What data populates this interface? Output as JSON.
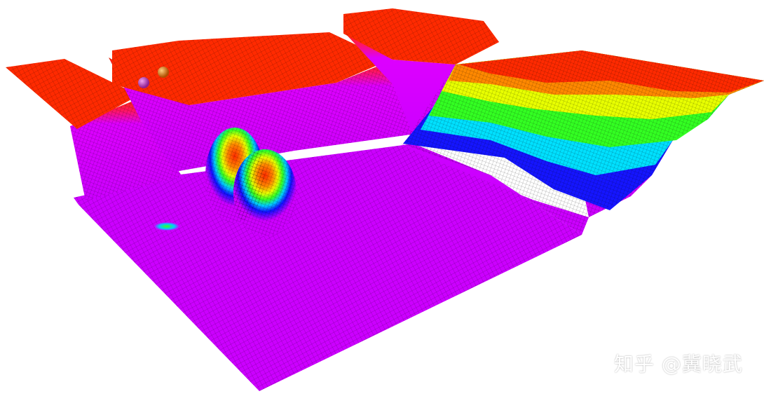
{
  "scene": {
    "description_colors": {
      "floor": "#cc00ff",
      "plateau_top": "#ff2a00",
      "orange": "#ff7a00",
      "yellow": "#e8ff00",
      "green": "#33ff22",
      "cyan": "#00e8ff",
      "blue": "#1010ff",
      "mesh_line": "#000000"
    },
    "markers": [
      {
        "name": "purple-sphere",
        "color": "#b040c0"
      },
      {
        "name": "orange-sphere",
        "color": "#e07a10"
      }
    ]
  },
  "watermark": {
    "text": "知乎 @冀晓武"
  }
}
